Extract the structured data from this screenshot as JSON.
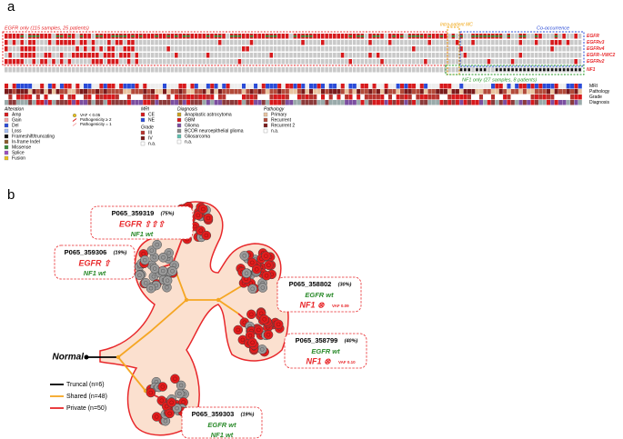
{
  "panel_a": {
    "label": "a",
    "groups": {
      "egfr_only": "EGFR only (115 samples, 25 patients)",
      "intra": "Intra-patient MC",
      "co": "Co-occurrence",
      "nf1_only": "NF1 only (27 samples, 8 patients)"
    },
    "genes": [
      "EGFR",
      "EGFRv3",
      "EGFRv4",
      "EGFR−VWC2",
      "EGFRv2",
      "NF1"
    ],
    "tracks": [
      "MRI",
      "Pathology",
      "Grade",
      "Diagnosis"
    ],
    "legend": {
      "alteration": {
        "title": "Alteration",
        "items": [
          "Amp",
          "Gain",
          "Del",
          "Loss",
          "Frameshift/truncating",
          "In-frame Indel",
          "Missense",
          "Splice",
          "Fusion"
        ]
      },
      "vaf": [
        "VAF < 0.05",
        "Pathogenicity ≥ 2",
        "Pathogenicity = 1"
      ],
      "mri": {
        "title": "MRI",
        "items": [
          "CE",
          "NE"
        ]
      },
      "grade": {
        "title": "Grade",
        "items": [
          "III",
          "IV",
          "n.a."
        ]
      },
      "diagnosis": {
        "title": "Diagnosis",
        "items": [
          "Anaplastic astrocytoma",
          "GBM",
          "Glioma",
          "BCOR neuroepithelial glioma",
          "Gliosarcoma",
          "n.a."
        ]
      },
      "pathology": {
        "title": "Pathology",
        "items": [
          "Primary",
          "Recurrent",
          "Recurrent 2",
          "n.a."
        ]
      }
    }
  },
  "panel_b": {
    "label": "b",
    "root": "Normal",
    "nodes": [
      {
        "id": "P065_359319",
        "percent": "(75%)",
        "egfr": "EGFR ⇧⇧⇧",
        "nf1": "NF1 wt"
      },
      {
        "id": "P065_359306",
        "percent": "(19%)",
        "egfr": "EGFR ⇧",
        "nf1": "NF1 wt"
      },
      {
        "id": "P065_358802",
        "percent": "(30%)",
        "egfr": "EGFR wt",
        "nf1": "NF1 ⊗",
        "vaf": "VAF 0.09"
      },
      {
        "id": "P065_358799",
        "percent": "(40%)",
        "egfr": "EGFR wt",
        "nf1": "NF1 ⊗",
        "vaf": "VAF 0.10"
      },
      {
        "id": "P065_359303",
        "percent": "(19%)",
        "egfr": "EGFR wt",
        "nf1": "NF1 wt"
      }
    ],
    "legend": [
      "Truncal (n=6)",
      "Shared (n=48)",
      "Private (n=50)"
    ]
  }
}
